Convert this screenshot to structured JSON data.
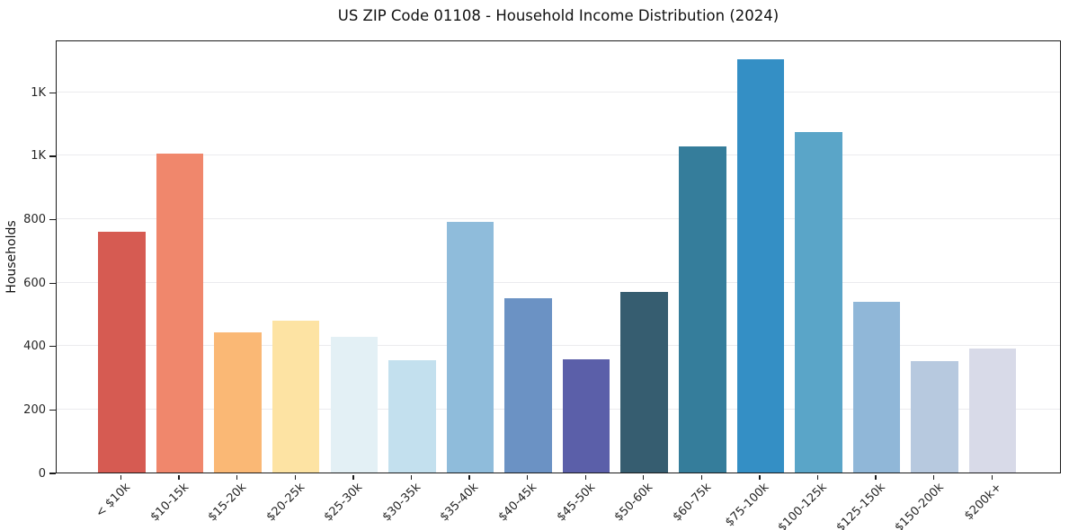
{
  "chart_data": {
    "type": "bar",
    "title": "US ZIP Code 01108 - Household Income Distribution (2024)",
    "xlabel": "",
    "ylabel": "Households",
    "categories": [
      "< $10k",
      "$10-15k",
      "$15-20k",
      "$20-25k",
      "$25-30k",
      "$30-35k",
      "$35-40k",
      "$40-45k",
      "$45-50k",
      "$50-60k",
      "$60-75k",
      "$75-100k",
      "$100-125k",
      "$125-150k",
      "$150-200k",
      "$200k+"
    ],
    "values": [
      760,
      1006,
      443,
      478,
      427,
      355,
      790,
      549,
      358,
      568,
      1027,
      1302,
      1074,
      537,
      352,
      391
    ],
    "bar_colors": [
      "#d65b52",
      "#f0876c",
      "#fab875",
      "#fde3a3",
      "#e3f0f5",
      "#c3e0ee",
      "#8fbcdb",
      "#6b92c4",
      "#5b5fa9",
      "#365d70",
      "#357d9b",
      "#348fc5",
      "#5aa5c8",
      "#90b7d8",
      "#b7c9df",
      "#d8dae8"
    ],
    "ytick_values": [
      0,
      200,
      400,
      600,
      800,
      1000,
      1200
    ],
    "ytick_labels": [
      "0",
      "200",
      "400",
      "600",
      "800",
      "1K",
      "1K"
    ],
    "ylim": [
      0,
      1365
    ],
    "xtick_rotation": 45,
    "grid": "horizontal-only",
    "gridline_color": "#ebebee",
    "legend": "none",
    "background": "#ffffff",
    "spine_color": "#1a1a1a"
  }
}
